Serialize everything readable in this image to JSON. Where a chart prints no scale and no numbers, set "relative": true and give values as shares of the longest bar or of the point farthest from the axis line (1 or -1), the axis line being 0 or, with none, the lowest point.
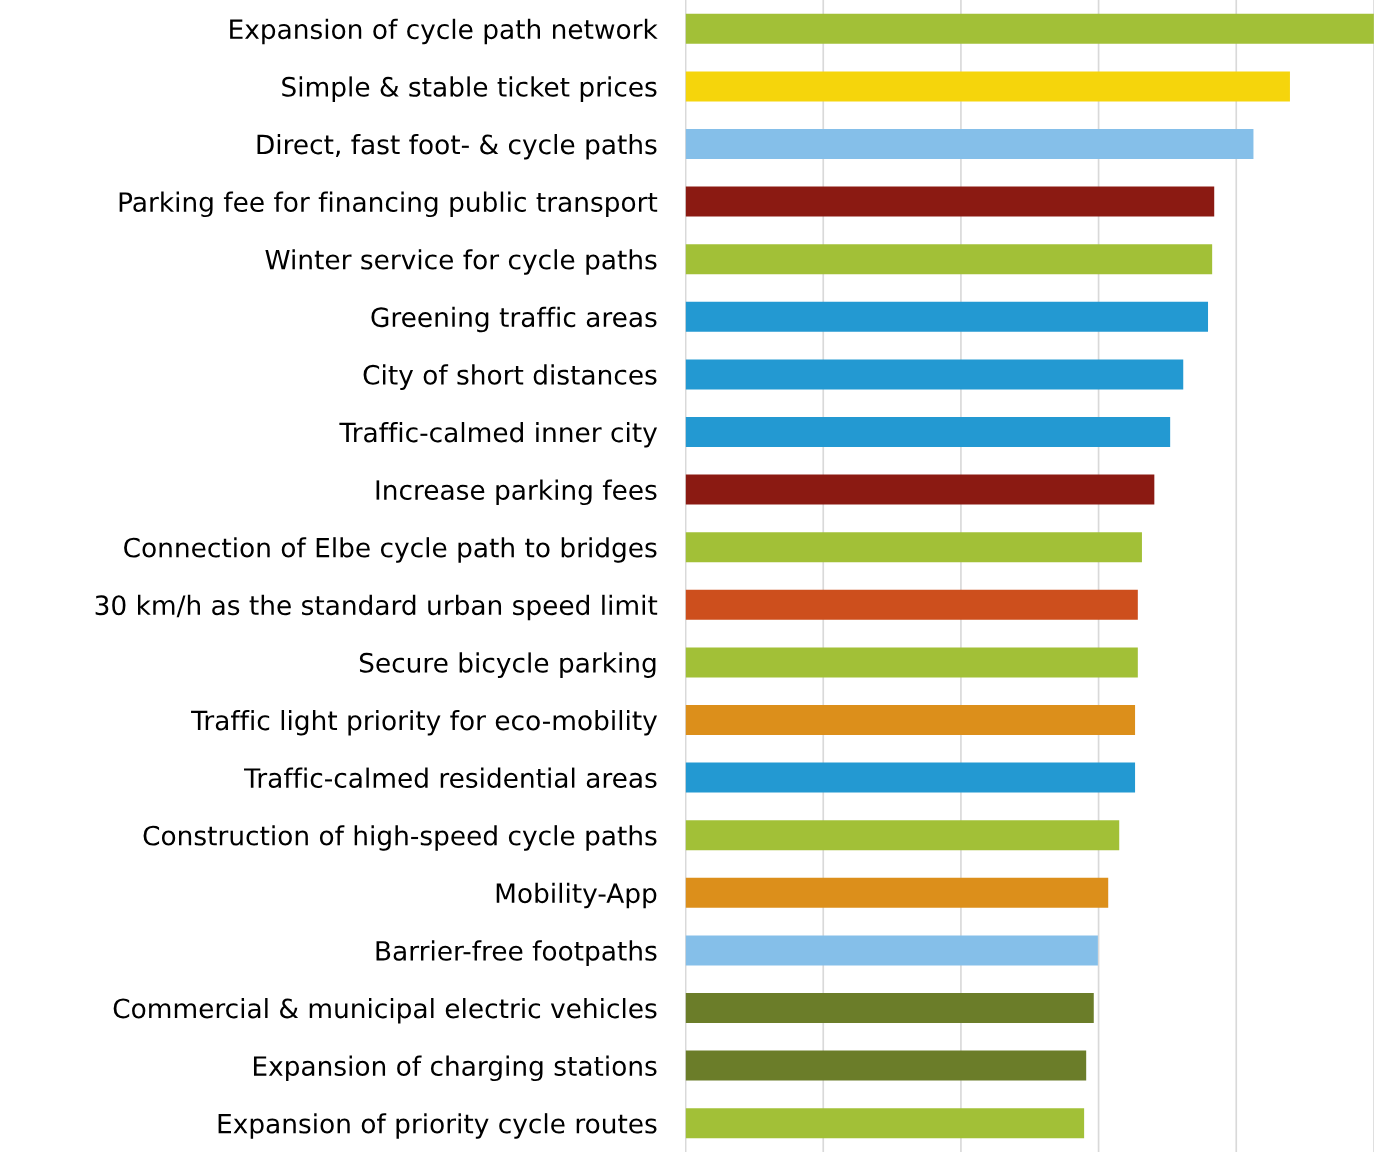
{
  "chart_data": {
    "type": "bar",
    "orientation": "horizontal",
    "relative": true,
    "grid": "x",
    "categories": [
      "Expansion of cycle path network",
      "Simple & stable ticket prices",
      "Direct, fast foot- & cycle paths",
      "Parking fee for financing public transport",
      "Winter service for cycle paths",
      "Greening traffic areas",
      "City of short distances",
      "Traffic-calmed inner city",
      "Increase parking fees",
      "Connection of Elbe cycle path to bridges",
      "30 km/h as the standard urban speed limit",
      "Secure bicycle parking",
      "Traffic light priority for eco-mobility",
      "Traffic-calmed residential areas",
      "Construction of high-speed cycle paths",
      "Mobility-App",
      "Barrier-free footpaths",
      "Commercial & municipal electric vehicles",
      "Expansion of charging stations",
      "Expansion of priority cycle routes"
    ],
    "values": [
      1.0,
      0.878,
      0.825,
      0.768,
      0.765,
      0.759,
      0.723,
      0.704,
      0.681,
      0.663,
      0.657,
      0.657,
      0.653,
      0.653,
      0.63,
      0.614,
      0.599,
      0.593,
      0.582,
      0.579
    ],
    "colors": [
      "#a2c037",
      "#f5d50c",
      "#85bfe9",
      "#8b1a12",
      "#a2c037",
      "#2399d2",
      "#2399d2",
      "#2399d2",
      "#8b1a12",
      "#a2c037",
      "#cd4f1d",
      "#a2c037",
      "#dc8f1b",
      "#2399d2",
      "#a2c037",
      "#dc8f1b",
      "#85bfe9",
      "#6b7d29",
      "#6b7d29",
      "#a2c037"
    ]
  }
}
